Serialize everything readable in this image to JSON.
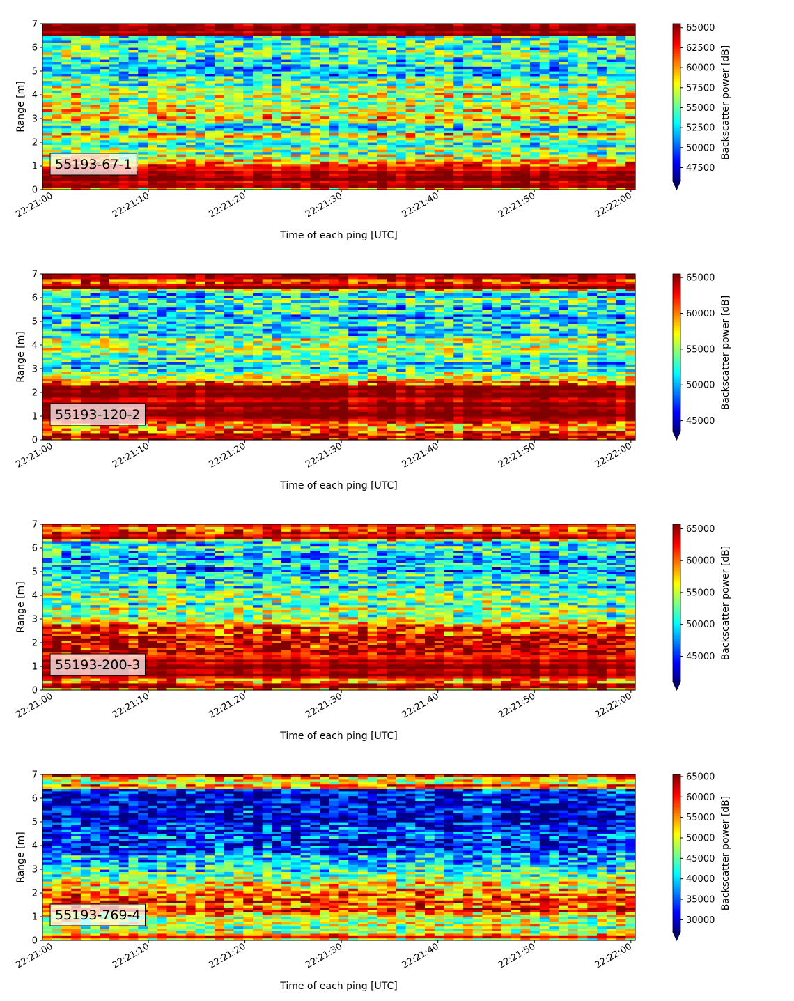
{
  "chart_data": [
    {
      "type": "heatmap",
      "label": "55193-67-1",
      "xlabel": "Time of each ping [UTC]",
      "ylabel": "Range [m]",
      "x_range": [
        "22:21:00",
        "22:22:00"
      ],
      "x_ticks": [
        "22:21:00",
        "22:21:10",
        "22:21:20",
        "22:21:30",
        "22:21:40",
        "22:21:50",
        "22:22:00"
      ],
      "ylim": [
        0,
        7
      ],
      "y_ticks": [
        "0",
        "1",
        "2",
        "3",
        "4",
        "5",
        "6",
        "7"
      ],
      "colormap": "jet",
      "colorbar": {
        "label": "Backscatter power [dB]",
        "range": [
          45800,
          65500
        ],
        "extend": "min",
        "ticks": [
          "47500",
          "50000",
          "52500",
          "55000",
          "57500",
          "60000",
          "62500",
          "65000"
        ]
      },
      "profile": [
        {
          "range_m": 0.0,
          "level": 0.55
        },
        {
          "range_m": 0.1,
          "level": 1.0
        },
        {
          "range_m": 1.0,
          "level": 0.93
        },
        {
          "range_m": 1.3,
          "level": 0.55
        },
        {
          "range_m": 2.0,
          "level": 0.4
        },
        {
          "range_m": 2.3,
          "level": 0.72
        },
        {
          "range_m": 2.6,
          "level": 0.25
        },
        {
          "range_m": 3.0,
          "level": 0.68
        },
        {
          "range_m": 4.0,
          "level": 0.55
        },
        {
          "range_m": 4.6,
          "level": 0.5
        },
        {
          "range_m": 5.0,
          "level": 0.28
        },
        {
          "range_m": 5.5,
          "level": 0.42
        },
        {
          "range_m": 6.0,
          "level": 0.42
        },
        {
          "range_m": 6.5,
          "level": 0.42
        },
        {
          "range_m": 6.55,
          "level": 1.0
        },
        {
          "range_m": 7.0,
          "level": 1.0
        }
      ]
    },
    {
      "type": "heatmap",
      "label": "55193-120-2",
      "xlabel": "Time of each ping [UTC]",
      "ylabel": "Range [m]",
      "x_range": [
        "22:21:00",
        "22:22:00"
      ],
      "x_ticks": [
        "22:21:00",
        "22:21:10",
        "22:21:20",
        "22:21:30",
        "22:21:40",
        "22:21:50",
        "22:22:00"
      ],
      "ylim": [
        0,
        7
      ],
      "y_ticks": [
        "0",
        "1",
        "2",
        "3",
        "4",
        "5",
        "6",
        "7"
      ],
      "colormap": "jet",
      "colorbar": {
        "label": "Backscatter power [dB]",
        "range": [
          43500,
          65500
        ],
        "extend": "min",
        "ticks": [
          "45000",
          "50000",
          "55000",
          "60000",
          "65000"
        ]
      },
      "profile": [
        {
          "range_m": 0.0,
          "level": 0.6
        },
        {
          "range_m": 0.1,
          "level": 1.0
        },
        {
          "range_m": 0.6,
          "level": 0.65
        },
        {
          "range_m": 0.9,
          "level": 1.0
        },
        {
          "range_m": 2.2,
          "level": 0.95
        },
        {
          "range_m": 2.5,
          "level": 0.75
        },
        {
          "range_m": 3.0,
          "level": 0.35
        },
        {
          "range_m": 3.6,
          "level": 0.45
        },
        {
          "range_m": 4.0,
          "level": 0.58
        },
        {
          "range_m": 4.5,
          "level": 0.4
        },
        {
          "range_m": 5.0,
          "level": 0.3
        },
        {
          "range_m": 5.6,
          "level": 0.38
        },
        {
          "range_m": 6.3,
          "level": 0.4
        },
        {
          "range_m": 6.4,
          "level": 1.0
        },
        {
          "range_m": 6.75,
          "level": 0.85
        },
        {
          "range_m": 7.0,
          "level": 1.0
        }
      ]
    },
    {
      "type": "heatmap",
      "label": "55193-200-3",
      "xlabel": "Time of each ping [UTC]",
      "ylabel": "Range [m]",
      "x_range": [
        "22:21:00",
        "22:22:00"
      ],
      "x_ticks": [
        "22:21:00",
        "22:21:10",
        "22:21:20",
        "22:21:30",
        "22:21:40",
        "22:21:50",
        "22:22:00"
      ],
      "ylim": [
        0,
        7
      ],
      "y_ticks": [
        "0",
        "1",
        "2",
        "3",
        "4",
        "5",
        "6",
        "7"
      ],
      "colormap": "jet",
      "colorbar": {
        "label": "Backscatter power [dB]",
        "range": [
          41000,
          65700
        ],
        "extend": "min",
        "ticks": [
          "45000",
          "50000",
          "55000",
          "60000",
          "65000"
        ]
      },
      "profile": [
        {
          "range_m": 0.0,
          "level": 0.6
        },
        {
          "range_m": 0.1,
          "level": 1.0
        },
        {
          "range_m": 0.45,
          "level": 0.72
        },
        {
          "range_m": 0.6,
          "level": 1.0
        },
        {
          "range_m": 1.5,
          "level": 0.9
        },
        {
          "range_m": 2.0,
          "level": 0.88
        },
        {
          "range_m": 2.7,
          "level": 0.88
        },
        {
          "range_m": 2.9,
          "level": 0.55
        },
        {
          "range_m": 3.5,
          "level": 0.5
        },
        {
          "range_m": 4.0,
          "level": 0.45
        },
        {
          "range_m": 5.0,
          "level": 0.32
        },
        {
          "range_m": 5.6,
          "level": 0.32
        },
        {
          "range_m": 6.3,
          "level": 0.38
        },
        {
          "range_m": 6.4,
          "level": 1.0
        },
        {
          "range_m": 6.85,
          "level": 0.8
        },
        {
          "range_m": 7.0,
          "level": 1.0
        }
      ]
    },
    {
      "type": "heatmap",
      "label": "55193-769-4",
      "xlabel": "Time of each ping [UTC]",
      "ylabel": "Range [m]",
      "x_range": [
        "22:21:00",
        "22:22:00"
      ],
      "x_ticks": [
        "22:21:00",
        "22:21:10",
        "22:21:20",
        "22:21:30",
        "22:21:40",
        "22:21:50",
        "22:22:00"
      ],
      "ylim": [
        0,
        7
      ],
      "y_ticks": [
        "0",
        "1",
        "2",
        "3",
        "4",
        "5",
        "6",
        "7"
      ],
      "colormap": "jet",
      "colorbar": {
        "label": "Backscatter power [dB]",
        "range": [
          27000,
          65500
        ],
        "extend": "min",
        "ticks": [
          "30000",
          "35000",
          "40000",
          "45000",
          "50000",
          "55000",
          "60000",
          "65000"
        ]
      },
      "profile": [
        {
          "range_m": 0.0,
          "level": 0.55
        },
        {
          "range_m": 0.15,
          "level": 0.95
        },
        {
          "range_m": 0.3,
          "level": 0.55
        },
        {
          "range_m": 1.0,
          "level": 0.6
        },
        {
          "range_m": 1.3,
          "level": 0.82
        },
        {
          "range_m": 2.0,
          "level": 0.8
        },
        {
          "range_m": 2.4,
          "level": 0.6
        },
        {
          "range_m": 3.0,
          "level": 0.38
        },
        {
          "range_m": 4.0,
          "level": 0.22
        },
        {
          "range_m": 5.0,
          "level": 0.12
        },
        {
          "range_m": 6.0,
          "level": 0.08
        },
        {
          "range_m": 6.35,
          "level": 0.15
        },
        {
          "range_m": 6.5,
          "level": 0.85
        },
        {
          "range_m": 6.7,
          "level": 0.5
        },
        {
          "range_m": 7.0,
          "level": 0.9
        }
      ]
    }
  ]
}
